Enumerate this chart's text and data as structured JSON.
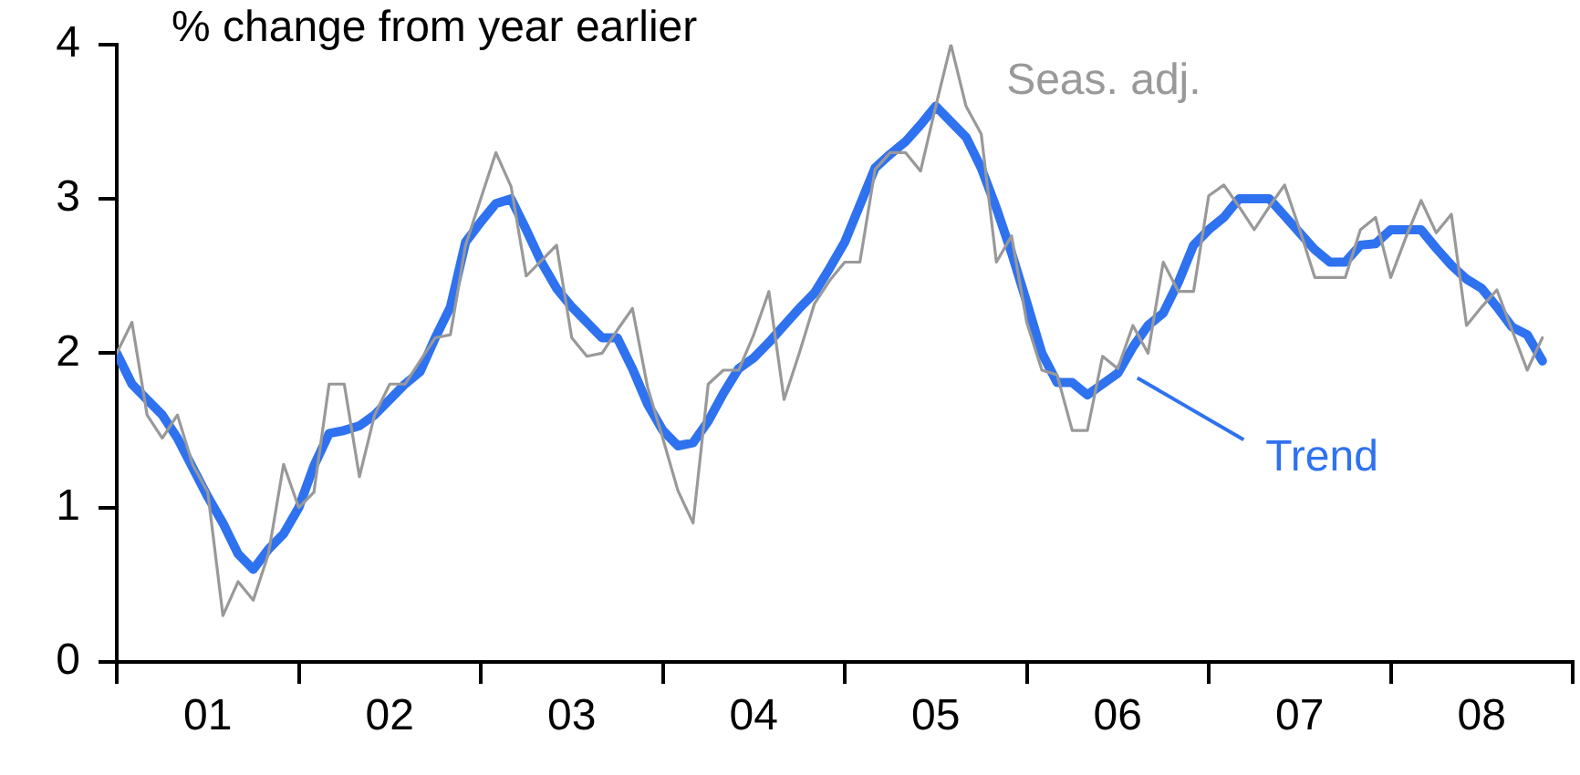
{
  "chart_data": {
    "type": "line",
    "title": "% change from year earlier",
    "categories": [
      null,
      null,
      null,
      null,
      null,
      null,
      "01",
      null,
      null,
      null,
      null,
      null,
      null,
      null,
      null,
      null,
      null,
      null,
      "02",
      null,
      null,
      null,
      null,
      null,
      null,
      null,
      null,
      null,
      null,
      null,
      "03",
      null,
      null,
      null,
      null,
      null,
      null,
      null,
      null,
      null,
      null,
      null,
      "04",
      null,
      null,
      null,
      null,
      null,
      null,
      null,
      null,
      null,
      null,
      null,
      "05",
      null,
      null,
      null,
      null,
      null,
      null,
      null,
      null,
      null,
      null,
      null,
      "06",
      null,
      null,
      null,
      null,
      null,
      null,
      null,
      null,
      null,
      null,
      null,
      "07",
      null,
      null,
      null,
      null,
      null,
      null,
      null,
      null,
      null,
      null,
      null,
      "08",
      null,
      null,
      null,
      null
    ],
    "ylim": [
      0,
      4
    ],
    "yticks": [
      0,
      1,
      2,
      3,
      4
    ],
    "grid": false,
    "legend": false,
    "marker": "none",
    "line_style": "solid",
    "series": [
      {
        "name": "Seas. adj.",
        "color": "#999999",
        "values": [
          2.0,
          2.2,
          1.6,
          1.45,
          1.6,
          1.28,
          1.1,
          0.3,
          0.52,
          0.4,
          0.7,
          1.28,
          1.0,
          1.1,
          1.8,
          1.8,
          1.2,
          1.6,
          1.8,
          1.8,
          1.95,
          2.1,
          2.12,
          2.7,
          3.0,
          3.3,
          3.08,
          2.5,
          2.6,
          2.7,
          2.1,
          1.98,
          2.0,
          2.15,
          2.29,
          1.78,
          1.45,
          1.11,
          0.9,
          1.8,
          1.89,
          1.89,
          2.12,
          2.4,
          1.7,
          2.0,
          2.32,
          2.47,
          2.59,
          2.59,
          3.19,
          3.3,
          3.3,
          3.18,
          3.6,
          4.0,
          3.6,
          3.42,
          2.59,
          2.76,
          2.2,
          1.89,
          1.86,
          1.5,
          1.5,
          1.98,
          1.9,
          2.18,
          2.0,
          2.59,
          2.4,
          2.4,
          3.02,
          3.09,
          2.95,
          2.8,
          2.95,
          3.09,
          2.8,
          2.49,
          2.49,
          2.49,
          2.8,
          2.88,
          2.49,
          2.75,
          2.99,
          2.78,
          2.9,
          2.18,
          2.3,
          2.41,
          2.15,
          1.89,
          2.1
        ]
      },
      {
        "name": "Trend",
        "color": "#2f72f0",
        "values": [
          2.0,
          1.8,
          1.7,
          1.6,
          1.45,
          1.26,
          1.07,
          0.9,
          0.7,
          0.6,
          0.73,
          0.83,
          1.0,
          1.27,
          1.48,
          1.5,
          1.53,
          1.6,
          1.7,
          1.8,
          1.88,
          2.1,
          2.3,
          2.72,
          2.85,
          2.97,
          3.0,
          2.8,
          2.59,
          2.42,
          2.3,
          2.2,
          2.1,
          2.1,
          1.9,
          1.67,
          1.5,
          1.4,
          1.42,
          1.56,
          1.74,
          1.9,
          1.97,
          2.07,
          2.18,
          2.29,
          2.39,
          2.55,
          2.72,
          2.96,
          3.2,
          3.29,
          3.37,
          3.48,
          3.6,
          3.5,
          3.4,
          3.2,
          2.94,
          2.65,
          2.33,
          2.0,
          1.81,
          1.81,
          1.73,
          1.8,
          1.87,
          2.04,
          2.18,
          2.26,
          2.46,
          2.7,
          2.8,
          2.88,
          3.0,
          3.0,
          3.0,
          2.89,
          2.78,
          2.67,
          2.59,
          2.59,
          2.7,
          2.71,
          2.8,
          2.8,
          2.8,
          2.68,
          2.57,
          2.48,
          2.42,
          2.3,
          2.17,
          2.12,
          1.95
        ]
      }
    ]
  }
}
